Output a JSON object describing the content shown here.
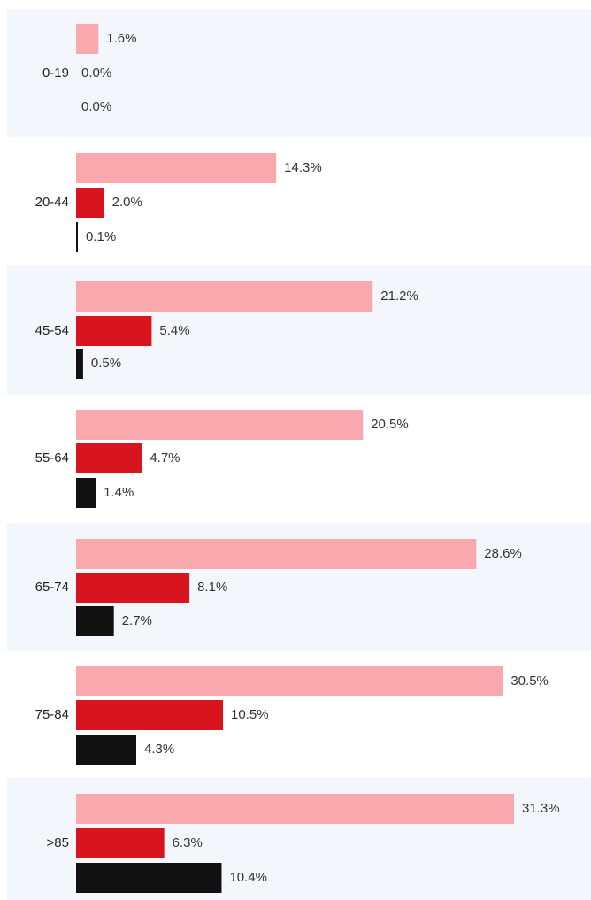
{
  "chart_data": {
    "type": "bar",
    "orientation": "horizontal",
    "grouped": true,
    "categories": [
      "0-19",
      "20-44",
      "45-54",
      "55-64",
      "65-74",
      "75-84",
      ">85"
    ],
    "series": [
      {
        "color": "#f9a8ae",
        "values": [
          1.6,
          14.3,
          21.2,
          20.5,
          28.6,
          30.5,
          31.3
        ],
        "labels": [
          "1.6%",
          "14.3%",
          "21.2%",
          "20.5%",
          "28.6%",
          "30.5%",
          "31.3%"
        ]
      },
      {
        "color": "#d8141f",
        "values": [
          0.0,
          2.0,
          5.4,
          4.7,
          8.1,
          10.5,
          6.3
        ],
        "labels": [
          "0.0%",
          "2.0%",
          "5.4%",
          "4.7%",
          "8.1%",
          "10.5%",
          "6.3%"
        ]
      },
      {
        "color": "#111111",
        "values": [
          0.0,
          0.1,
          0.5,
          1.4,
          2.7,
          4.3,
          10.4
        ],
        "labels": [
          "0.0%",
          "0.1%",
          "0.5%",
          "1.4%",
          "2.7%",
          "4.3%",
          "10.4%"
        ]
      }
    ],
    "xlim": [
      0,
      31.3
    ],
    "band_colors": [
      "#f3f6fb",
      "#ffffff"
    ],
    "zero_label_color": "#d8141f",
    "grid": false,
    "legend": "none"
  }
}
